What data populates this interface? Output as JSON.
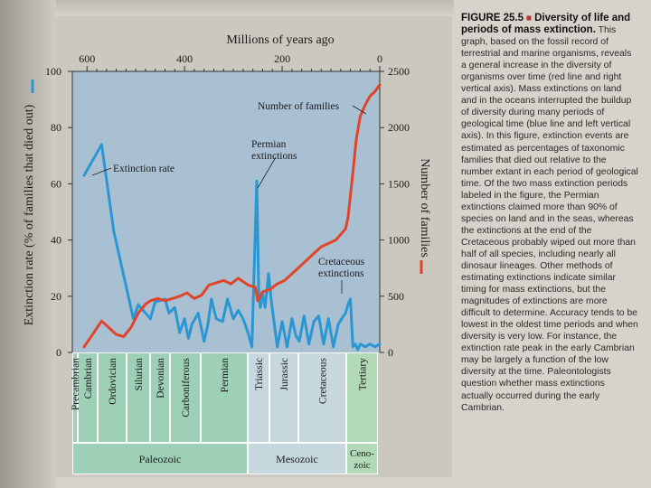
{
  "chart_data": {
    "type": "line",
    "title": "Millions of years ago",
    "x_ticks": [
      "600",
      "400",
      "200",
      "0"
    ],
    "y_left_label": "Extinction rate (% of families that died out)",
    "y_left_ticks": [
      "100",
      "80",
      "60",
      "40",
      "20",
      "0"
    ],
    "y_left_range": [
      0,
      100
    ],
    "y_right_label": "Number of families",
    "y_right_ticks": [
      "2500",
      "2000",
      "1500",
      "1000",
      "500",
      "0"
    ],
    "y_right_range": [
      0,
      2500
    ],
    "x_range": [
      630,
      0
    ],
    "series": [
      {
        "name": "Extinction rate",
        "axis": "left",
        "color": "#2a97d2",
        "x": [
          606,
          570,
          545,
          505,
          495,
          470,
          460,
          440,
          432,
          420,
          410,
          400,
          392,
          385,
          372,
          360,
          352,
          345,
          335,
          322,
          312,
          300,
          290,
          280,
          270,
          262,
          252,
          248,
          245,
          240,
          235,
          228,
          222,
          210,
          200,
          190,
          180,
          172,
          165,
          155,
          145,
          135,
          125,
          115,
          105,
          95,
          85,
          78,
          70,
          65,
          60,
          55,
          50,
          45,
          40,
          30,
          20,
          10,
          0
        ],
        "y": [
          63,
          74,
          43,
          12,
          17,
          12,
          18,
          19,
          14,
          16,
          7,
          12,
          5,
          10,
          14,
          4,
          10,
          19,
          12,
          11,
          19,
          12,
          15,
          12,
          7,
          2,
          61,
          21,
          16,
          21,
          16,
          28,
          18,
          2,
          11,
          2,
          12,
          6,
          4,
          13,
          3,
          11,
          13,
          3,
          12,
          2,
          10,
          12,
          14,
          17,
          19,
          2,
          3,
          1,
          3,
          2,
          3,
          2,
          3
        ]
      },
      {
        "name": "Number of families",
        "axis": "right",
        "color": "#e0452a",
        "x": [
          606,
          590,
          570,
          555,
          540,
          525,
          510,
          495,
          480,
          470,
          455,
          440,
          425,
          410,
          395,
          380,
          365,
          350,
          335,
          320,
          305,
          290,
          270,
          255,
          250,
          240,
          225,
          210,
          195,
          180,
          165,
          150,
          135,
          120,
          100,
          90,
          80,
          70,
          65,
          55,
          48,
          40,
          30,
          20,
          10,
          0
        ],
        "y": [
          50,
          150,
          280,
          220,
          160,
          140,
          220,
          350,
          430,
          460,
          480,
          460,
          480,
          500,
          530,
          480,
          510,
          600,
          620,
          640,
          610,
          660,
          600,
          580,
          460,
          540,
          560,
          610,
          640,
          700,
          760,
          820,
          880,
          940,
          980,
          1000,
          1050,
          1100,
          1200,
          1600,
          1900,
          2100,
          2200,
          2280,
          2320,
          2380
        ]
      }
    ],
    "annotations": [
      "Number of families",
      "Permian extinctions",
      "Extinction rate",
      "Cretaceous extinctions"
    ],
    "periods": [
      "Precambrian",
      "Cambrian",
      "Ordovician",
      "Silurian",
      "Devonian",
      "Carboniferous",
      "Permian",
      "Triassic",
      "Jurassic",
      "Cretaceous",
      "Tertiary"
    ],
    "eras": [
      "Paleozoic",
      "Mesozoic",
      "Ceno-zoic"
    ],
    "colors": {
      "plot_bg": "#a9c0d3",
      "paleozoic_band": "#9ed0b8",
      "mesozoic_band": "#c6d8de",
      "cenozoic_band": "#b2dab8",
      "text": "#1a1a1a"
    }
  },
  "caption": {
    "figure_number": "FIGURE 25.5",
    "bullet": "■",
    "title": "Diversity of life and periods of mass extinction.",
    "body": "This graph, based on the fossil record of terrestrial and marine organisms, reveals a general increase in the diversity of organisms over time (red line and right vertical axis). Mass extinctions on land and in the oceans interrupted the buildup of diversity during many periods of geological time (blue line and left vertical axis). In this figure, extinction events are estimated as percentages of taxonomic families that died out relative to the number extant in each period of geological time. Of the two mass extinction periods labeled in the figure, the Permian extinctions claimed more than 90% of species on land and in the seas, whereas the extinctions at the end of the Cretaceous probably wiped out more than half of all species, including nearly all dinosaur lineages. Other methods of estimating extinctions indicate similar timing for mass extinctions, but the magnitudes of extinctions are more difficult to determine. Accuracy tends to be lowest in the oldest time periods and when diversity is very low. For instance, the extinction rate peak in the early Cambrian may be largely a function of the low diversity at the time. Paleontologists question whether mass extinctions actually occurred during the early Cambrian."
  }
}
